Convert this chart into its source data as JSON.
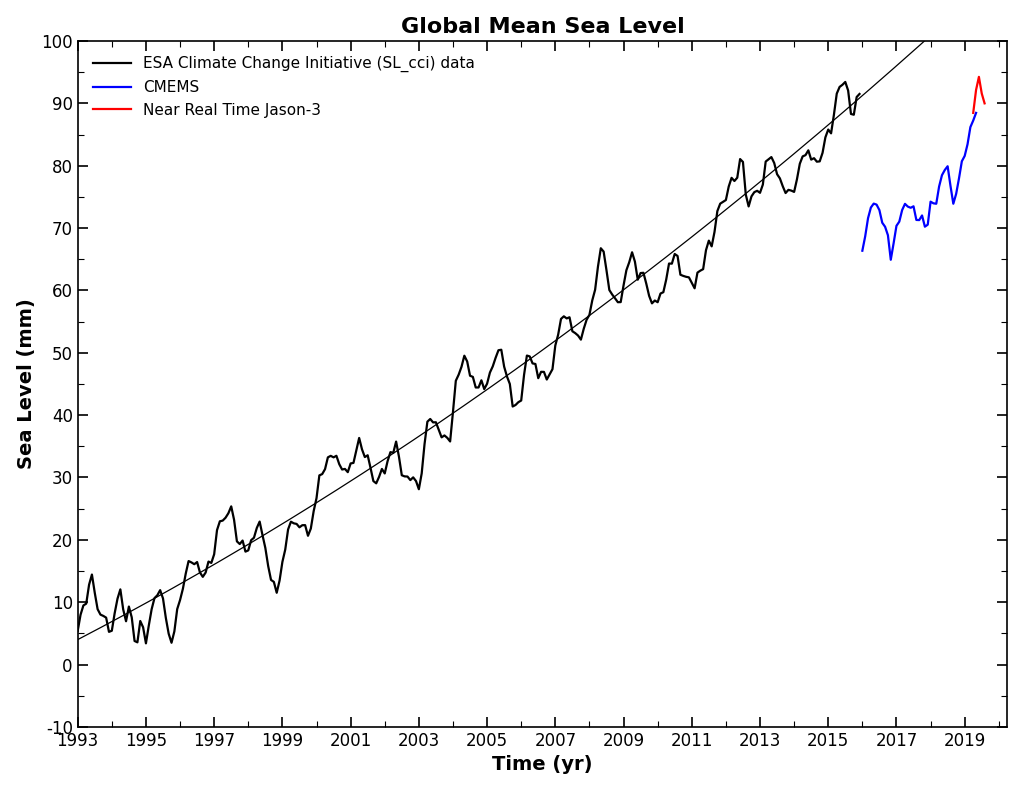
{
  "title": "Global Mean Sea Level",
  "xlabel": "Time (yr)",
  "ylabel": "Sea Level (mm)",
  "ylim": [
    -10,
    100
  ],
  "xlim_start": 1993.0,
  "xlim_end": 2020.25,
  "xtick_years": [
    1993,
    1995,
    1997,
    1999,
    2001,
    2003,
    2005,
    2007,
    2009,
    2011,
    2013,
    2015,
    2017,
    2019
  ],
  "yticks": [
    -10,
    0,
    10,
    20,
    30,
    40,
    50,
    60,
    70,
    80,
    90,
    100
  ],
  "esa_color": "#000000",
  "cmems_color": "#0000FF",
  "jason_color": "#FF0000",
  "quadratic_color": "#000000",
  "quadratic_lw": 0.9,
  "data_lw": 1.6,
  "legend_labels": [
    "ESA Climate Change Initiative (SL_cci) data",
    "CMEMS",
    "Near Real Time Jason-3"
  ],
  "quadratic_a": 0.041,
  "quadratic_b": 2.85,
  "quadratic_c": 4.0,
  "title_fontsize": 16,
  "label_fontsize": 14,
  "tick_fontsize": 12,
  "background_color": "#FFFFFF"
}
